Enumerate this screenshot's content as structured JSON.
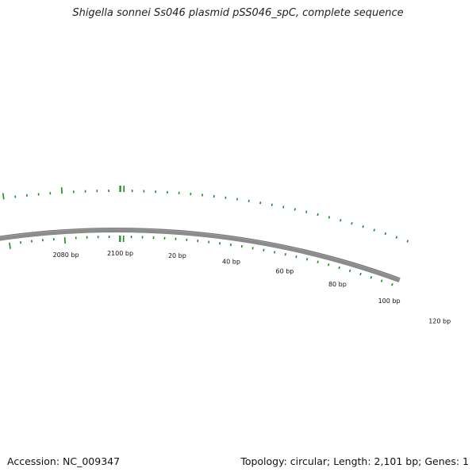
{
  "title": "Shigella sonnei Ss046 plasmid pSS046_spC, complete sequence",
  "footer": {
    "accession": "Accession: NC_009347",
    "summary": "Topology: circular; Length: 2,101 bp; Genes: 1"
  },
  "map": {
    "topology": "circular",
    "length_bp": 2101,
    "backbone_color": "#8c8c8c",
    "tick_color": "#1f8a1f",
    "label_color": "#111111",
    "position_labels": [
      {
        "bp": 2080,
        "label": "2080 bp"
      },
      {
        "bp": 2100,
        "label": "2100 bp"
      },
      {
        "bp": 20,
        "label": "20 bp"
      },
      {
        "bp": 40,
        "label": "40 bp"
      },
      {
        "bp": 60,
        "label": "60 bp"
      },
      {
        "bp": 80,
        "label": "80 bp"
      },
      {
        "bp": 100,
        "label": "100 bp"
      },
      {
        "bp": 120,
        "label": "120 bp"
      }
    ]
  }
}
